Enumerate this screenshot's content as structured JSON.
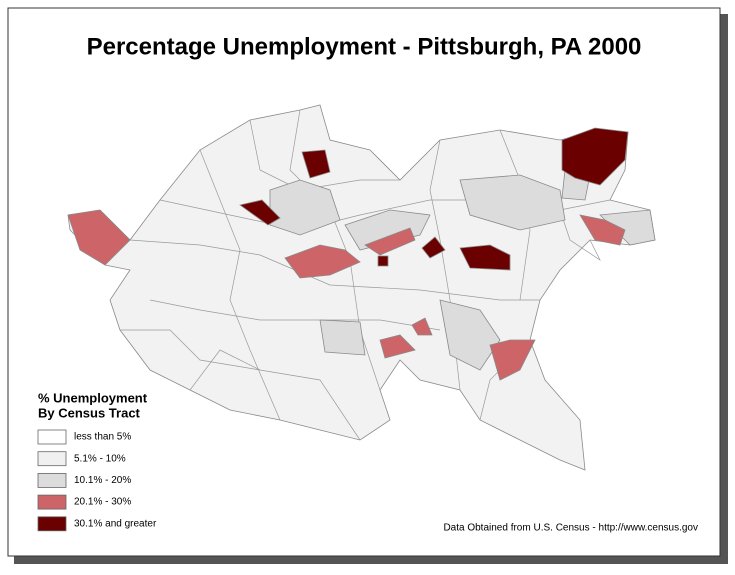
{
  "title": "Percentage Unemployment - Pittsburgh, PA 2000",
  "legend": {
    "title": "% Unemployment",
    "subtitle": "By Census Tract",
    "items": [
      {
        "label": "less than  5%",
        "color": "#ffffff"
      },
      {
        "label": "5.1% - 10%",
        "color": "#f0f0f0"
      },
      {
        "label": "10.1% - 20%",
        "color": "#dcdcdc"
      },
      {
        "label": "20.1% - 30%",
        "color": "#cd6468"
      },
      {
        "label": "30.1% and greater",
        "color": "#6b0000"
      }
    ]
  },
  "source": "Data Obtained from U.S. Census - http://www.census.gov"
}
